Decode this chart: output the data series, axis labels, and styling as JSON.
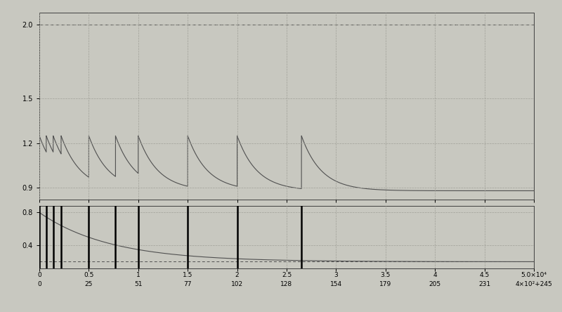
{
  "xlim": [
    0,
    5.0
  ],
  "xticks": [
    0,
    0.5,
    1.0,
    1.5,
    2.0,
    2.5,
    3.0,
    3.5,
    4.0,
    4.5,
    5.0
  ],
  "xtick_labels_row1": [
    "0",
    "0.5",
    "1",
    "1.5",
    "2",
    "2.5",
    "3",
    "3.5",
    "4",
    "4.5",
    "5.0×10⁴"
  ],
  "xtick_labels_row2": [
    "0",
    "25",
    "51",
    "77",
    "102",
    "128",
    "154",
    "179",
    "205",
    "231",
    "4×10²+245"
  ],
  "yticks_upper": [
    0.9,
    1.2,
    1.5,
    2.0
  ],
  "ytick_labels_upper": [
    "0.9",
    "1.2",
    "1.5",
    "2.0"
  ],
  "yticks_lower": [
    0.4,
    0.8
  ],
  "ytick_labels_lower": [
    "0.4",
    "0.8"
  ],
  "ylim_upper": [
    0.82,
    2.08
  ],
  "ylim_lower": [
    0.12,
    0.88
  ],
  "bg_color": "#c8c8c0",
  "line_color": "#505050",
  "pulse_color": "#000000",
  "flat_line_y": 2.0,
  "carbon_baseline": 0.88,
  "carbon_peak": 1.25,
  "boost_times": [
    0.0,
    0.07,
    0.14,
    0.22,
    0.5,
    0.77,
    1.0,
    1.5,
    2.0,
    2.65
  ],
  "pulse_times_lower": [
    0.0,
    0.07,
    0.14,
    0.22,
    0.5,
    0.77,
    1.0,
    1.5,
    2.0,
    2.65
  ],
  "lower_start": 0.8,
  "lower_baseline": 0.2,
  "lower_decay": 1.4,
  "carbon_decay_rate": 5.0,
  "grid_color": "#a0a098",
  "grid_style": "--"
}
